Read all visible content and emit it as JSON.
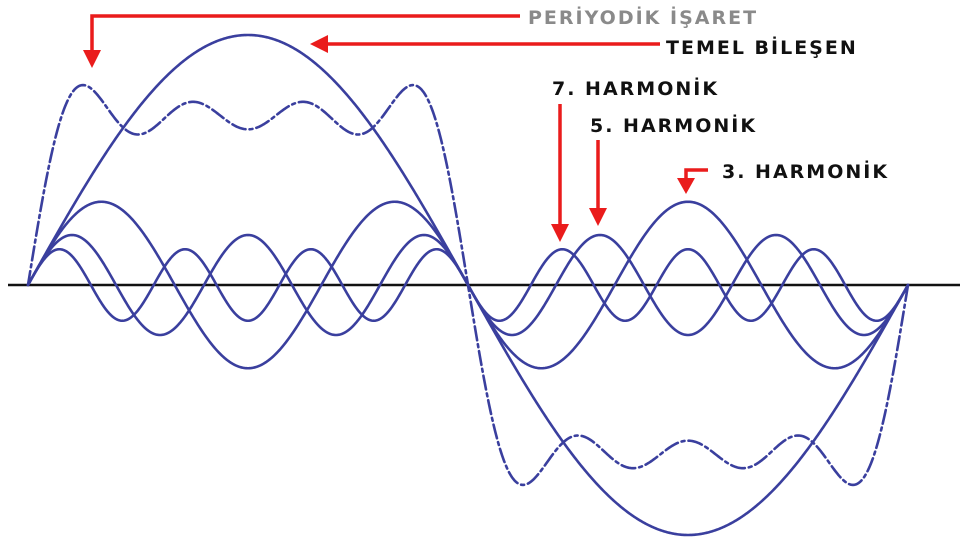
{
  "labels": {
    "periodic_signal": "PERİYODİK İŞARET",
    "fundamental": "TEMEL BİLEŞEN",
    "h7": "7. HARMONİK",
    "h5": "5. HARMONİK",
    "h3": "3. HARMONİK"
  },
  "colors": {
    "wave": "#3a3f9e",
    "axis": "#111111",
    "arrow": "#ea1c1c",
    "label_gray": "#8a8a8a",
    "label_dark": "#111111"
  },
  "waves": {
    "fundamental_amplitude": 1.0,
    "harmonics": [
      3,
      5,
      7
    ],
    "harmonic_amplitudes": [
      0.333,
      0.2,
      0.143
    ],
    "periodic_signal": "sum of fundamental and odd harmonics"
  }
}
